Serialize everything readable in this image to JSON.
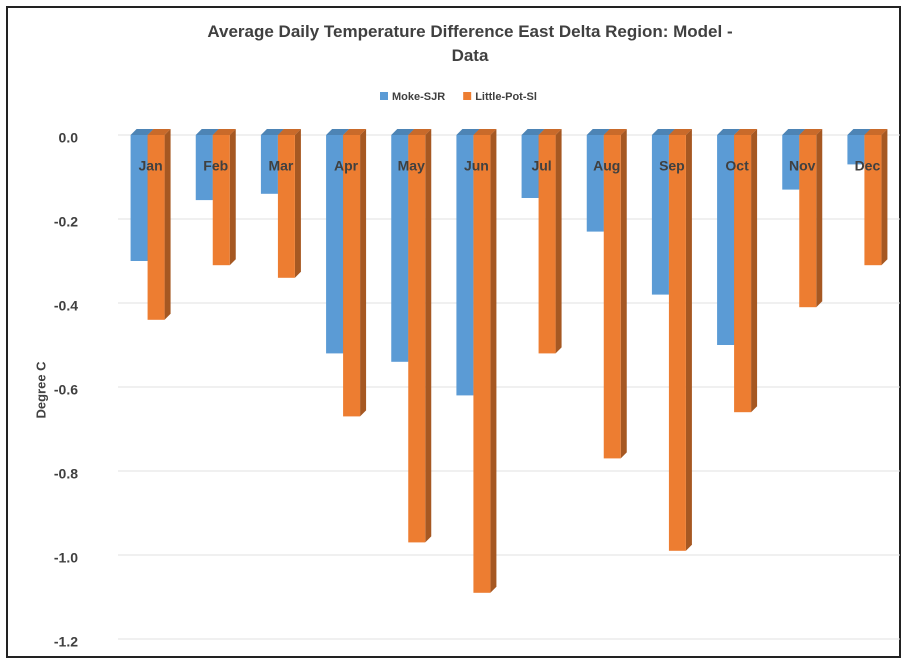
{
  "chart_data": {
    "type": "bar3d",
    "title": "Average Daily Temperature Difference East Delta Region: Model - Data",
    "y_label": "Degree C",
    "categories": [
      "Jan",
      "Feb",
      "Mar",
      "Apr",
      "May",
      "Jun",
      "Jul",
      "Aug",
      "Sep",
      "Oct",
      "Nov",
      "Dec"
    ],
    "series": [
      {
        "name": "Moke-SJR",
        "color": "#5b9bd5",
        "values": [
          -0.3,
          -0.155,
          -0.14,
          -0.52,
          -0.54,
          -0.62,
          -0.15,
          -0.23,
          -0.38,
          -0.5,
          -0.13,
          -0.07
        ]
      },
      {
        "name": "Little-Pot-Sl",
        "color": "#ed7d31",
        "values": [
          -0.44,
          -0.31,
          -0.34,
          -0.67,
          -0.97,
          -1.09,
          -0.52,
          -0.77,
          -0.99,
          -0.66,
          -0.41,
          -0.31
        ]
      }
    ],
    "ylim": [
      -1.2,
      0
    ],
    "yticks": [
      {
        "value": 0,
        "label": "0.0"
      },
      {
        "value": -0.2,
        "label": "-0.2"
      },
      {
        "value": -0.4,
        "label": "-0.4"
      },
      {
        "value": -0.6,
        "label": "-0.6"
      },
      {
        "value": -0.8,
        "label": "-0.8"
      },
      {
        "value": -1.0,
        "label": "-1.0"
      },
      {
        "value": -1.2,
        "label": "-1.2"
      }
    ],
    "grid": true,
    "legend": "top"
  }
}
